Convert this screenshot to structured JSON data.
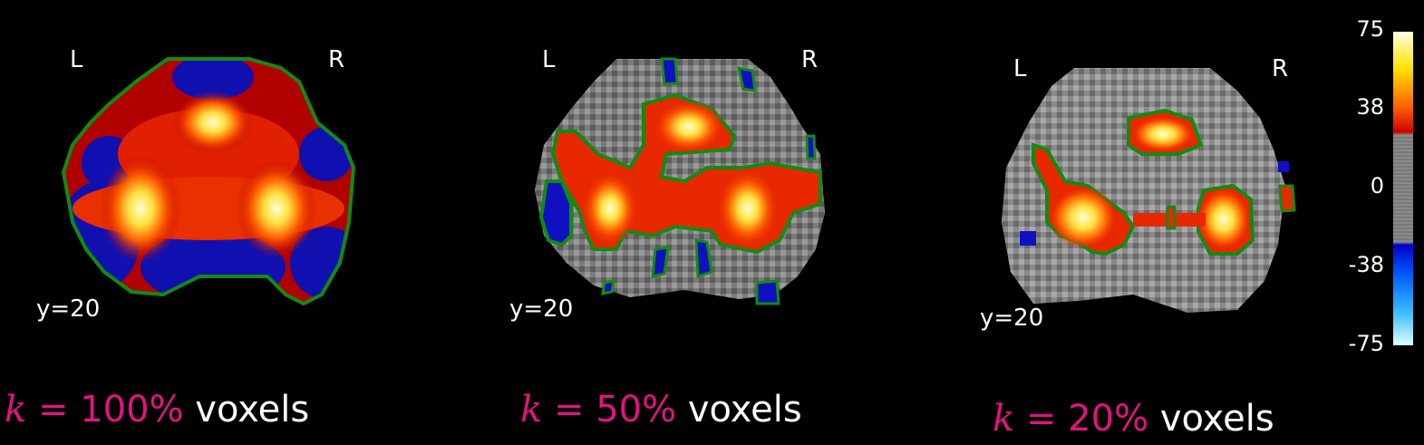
{
  "panels": [
    {
      "left": "L",
      "right": "R",
      "coord": "y=20",
      "caption": {
        "k": "k",
        "eq": "=",
        "pct": "100%",
        "unit": "voxels"
      }
    },
    {
      "left": "L",
      "right": "R",
      "coord": "y=20",
      "caption": {
        "k": "k",
        "eq": "=",
        "pct": "50%",
        "unit": "voxels"
      }
    },
    {
      "left": "L",
      "right": "R",
      "coord": "y=20",
      "caption": {
        "k": "k",
        "eq": "=",
        "pct": "20%",
        "unit": "voxels"
      }
    }
  ],
  "colorbar": {
    "ticks": [
      "75",
      "38",
      "0",
      "-38",
      "-75"
    ],
    "colors": {
      "hot_top": "#ffffe0",
      "hot_mid": "#ff8800",
      "hot_low": "#cc0000",
      "neutral": "#8a8a8a",
      "cold_low": "#0000cc",
      "cold_mid": "#0088ff",
      "cold_top": "#e0ffff"
    }
  },
  "colors": {
    "contour": "#138a13",
    "caption_math": "#e0147f"
  }
}
